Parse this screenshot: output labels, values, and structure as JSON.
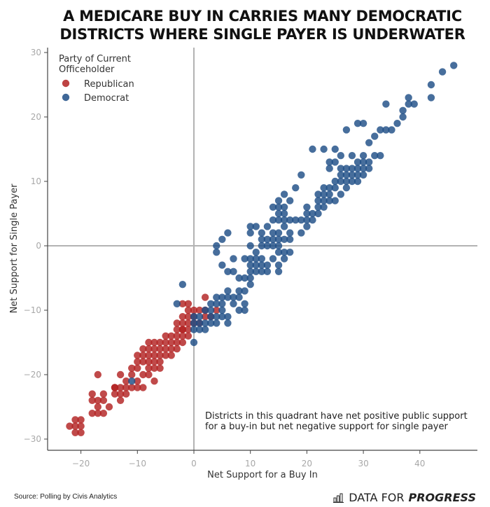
{
  "title_lines": [
    "A MEDICARE BUY IN CARRIES MANY DEMOCRATIC",
    "DISTRICTS WHERE SINGLE PAYER IS UNDERWATER"
  ],
  "source": "Source: Polling by Civis Analytics",
  "brand": {
    "icon": "bar-chart-icon",
    "light": "DATA FOR",
    "strong": "PROGRESS"
  },
  "chart_data": {
    "type": "scatter",
    "title": "A MEDICARE BUY IN CARRIES MANY DEMOCRATIC DISTRICTS WHERE SINGLE PAYER IS UNDERWATER",
    "xlabel": "Net Support for a Buy In",
    "ylabel": "Net Support for Single Payer",
    "xlim": [
      -25.5,
      50
    ],
    "ylim": [
      -32,
      31
    ],
    "xticks": [
      -20,
      -10,
      0,
      10,
      20,
      30,
      40
    ],
    "yticks": [
      -30,
      -20,
      -10,
      0,
      10,
      20,
      30
    ],
    "xtick_labels": [
      "−20",
      "−10",
      "0",
      "10",
      "20",
      "30",
      "40"
    ],
    "ytick_labels": [
      "−30",
      "−20",
      "−10",
      "0",
      "10",
      "20",
      "30"
    ],
    "reference_lines": {
      "x": 0,
      "y": 0
    },
    "grid": false,
    "legend": {
      "title_lines": [
        "Party of Current",
        "Officeholder"
      ],
      "placement": "top-left"
    },
    "annotation": [
      "Districts in this quadrant have net positive public support",
      "for a buy-in but net negative support for single payer"
    ],
    "series": [
      {
        "name": "Republican",
        "color": "#b22222",
        "points": [
          [
            -22,
            -28
          ],
          [
            -21,
            -28
          ],
          [
            -21,
            -27
          ],
          [
            -20,
            -27
          ],
          [
            -21,
            -29
          ],
          [
            -20,
            -28
          ],
          [
            -20,
            -29
          ],
          [
            -18,
            -26
          ],
          [
            -17,
            -26
          ],
          [
            -16,
            -26
          ],
          [
            -18,
            -23
          ],
          [
            -16,
            -23
          ],
          [
            -18,
            -24
          ],
          [
            -17,
            -24
          ],
          [
            -16,
            -24
          ],
          [
            -17,
            -25
          ],
          [
            -15,
            -25
          ],
          [
            -17,
            -20
          ],
          [
            -13,
            -20
          ],
          [
            -14,
            -23
          ],
          [
            -13,
            -23
          ],
          [
            -12,
            -23
          ],
          [
            -14,
            -22
          ],
          [
            -13,
            -22
          ],
          [
            -12,
            -22
          ],
          [
            -13,
            -24
          ],
          [
            -14,
            -22
          ],
          [
            -12,
            -21
          ],
          [
            -11,
            -22
          ],
          [
            -10,
            -22
          ],
          [
            -9,
            -22
          ],
          [
            -11,
            -19
          ],
          [
            -10,
            -19
          ],
          [
            -11,
            -20
          ],
          [
            -9,
            -20
          ],
          [
            -8,
            -20
          ],
          [
            -10,
            -21
          ],
          [
            -7,
            -21
          ],
          [
            -9,
            -18
          ],
          [
            -8,
            -18
          ],
          [
            -7,
            -18
          ],
          [
            -6,
            -18
          ],
          [
            -9,
            -17
          ],
          [
            -8,
            -17
          ],
          [
            -7,
            -17
          ],
          [
            -6,
            -17
          ],
          [
            -5,
            -17
          ],
          [
            -9,
            -16
          ],
          [
            -7,
            -16
          ],
          [
            -6,
            -16
          ],
          [
            -5,
            -16
          ],
          [
            -4,
            -16
          ],
          [
            -8,
            -15
          ],
          [
            -7,
            -15
          ],
          [
            -6,
            -15
          ],
          [
            -5,
            -15
          ],
          [
            -4,
            -15
          ],
          [
            -3,
            -15
          ],
          [
            -2,
            -15
          ],
          [
            -8,
            -19
          ],
          [
            -7,
            -19
          ],
          [
            -6,
            -19
          ],
          [
            -8,
            -16
          ],
          [
            -10,
            -17
          ],
          [
            -10,
            -18
          ],
          [
            -5,
            -14
          ],
          [
            -4,
            -14
          ],
          [
            -3,
            -14
          ],
          [
            -2,
            -14
          ],
          [
            -1,
            -14
          ],
          [
            -3,
            -13
          ],
          [
            -2,
            -13
          ],
          [
            -4,
            -17
          ],
          [
            -3,
            -16
          ],
          [
            -2,
            -13
          ],
          [
            -1,
            -13
          ],
          [
            -3,
            -12
          ],
          [
            -2,
            -12
          ],
          [
            -1,
            -12
          ],
          [
            0,
            -12
          ],
          [
            1,
            -12
          ],
          [
            -2,
            -11
          ],
          [
            -1,
            -11
          ],
          [
            2,
            -11
          ],
          [
            -1,
            -10
          ],
          [
            0,
            -10
          ],
          [
            1,
            -10
          ],
          [
            2,
            -10
          ],
          [
            0,
            -11
          ],
          [
            -1,
            -9
          ],
          [
            -2,
            -9
          ],
          [
            2,
            -8
          ],
          [
            4,
            -10
          ],
          [
            3,
            -11
          ]
        ]
      },
      {
        "name": "Democrat",
        "color": "#1f4e86",
        "points": [
          [
            -11,
            -21
          ],
          [
            -2,
            -6
          ],
          [
            -3,
            -9
          ],
          [
            0,
            -15
          ],
          [
            0,
            -13
          ],
          [
            0,
            -12
          ],
          [
            1,
            -12
          ],
          [
            1,
            -13
          ],
          [
            1,
            -11
          ],
          [
            0,
            -11
          ],
          [
            2,
            -12
          ],
          [
            2,
            -13
          ],
          [
            3,
            -12
          ],
          [
            3,
            -11
          ],
          [
            3,
            -10
          ],
          [
            4,
            -11
          ],
          [
            4,
            -9
          ],
          [
            5,
            -9
          ],
          [
            5,
            -10
          ],
          [
            6,
            -11
          ],
          [
            6,
            -12
          ],
          [
            5,
            -11
          ],
          [
            4,
            -12
          ],
          [
            2,
            -10
          ],
          [
            3,
            -9
          ],
          [
            6,
            -8
          ],
          [
            7,
            -8
          ],
          [
            5,
            -8
          ],
          [
            6,
            -7
          ],
          [
            4,
            -8
          ],
          [
            7,
            -9
          ],
          [
            8,
            -8
          ],
          [
            8,
            -10
          ],
          [
            9,
            -10
          ],
          [
            9,
            -9
          ],
          [
            8,
            -7
          ],
          [
            9,
            -7
          ],
          [
            10,
            -6
          ],
          [
            9,
            -5
          ],
          [
            8,
            -5
          ],
          [
            7,
            -4
          ],
          [
            6,
            -4
          ],
          [
            5,
            -3
          ],
          [
            7,
            -2
          ],
          [
            9,
            -2
          ],
          [
            10,
            -2
          ],
          [
            11,
            -2
          ],
          [
            12,
            -2
          ],
          [
            10,
            -3
          ],
          [
            11,
            -3
          ],
          [
            12,
            -3
          ],
          [
            13,
            -3
          ],
          [
            12,
            -4
          ],
          [
            11,
            -4
          ],
          [
            10,
            -4
          ],
          [
            10,
            -5
          ],
          [
            13,
            -4
          ],
          [
            14,
            -2
          ],
          [
            15,
            -1
          ],
          [
            16,
            -1
          ],
          [
            17,
            -1
          ],
          [
            15,
            -3
          ],
          [
            15,
            -4
          ],
          [
            11,
            -1
          ],
          [
            12,
            0
          ],
          [
            13,
            0
          ],
          [
            14,
            0
          ],
          [
            15,
            0
          ],
          [
            13,
            1
          ],
          [
            14,
            1
          ],
          [
            15,
            1
          ],
          [
            16,
            1
          ],
          [
            17,
            1
          ],
          [
            12,
            1
          ],
          [
            16,
            -2
          ],
          [
            4,
            -1
          ],
          [
            4,
            0
          ],
          [
            6,
            2
          ],
          [
            5,
            1
          ],
          [
            10,
            0
          ],
          [
            10,
            2
          ],
          [
            10,
            3
          ],
          [
            11,
            3
          ],
          [
            12,
            2
          ],
          [
            13,
            3
          ],
          [
            14,
            2
          ],
          [
            15,
            2
          ],
          [
            16,
            3
          ],
          [
            17,
            2
          ],
          [
            18,
            4
          ],
          [
            19,
            4
          ],
          [
            19,
            2
          ],
          [
            20,
            3
          ],
          [
            14,
            4
          ],
          [
            15,
            4
          ],
          [
            16,
            4
          ],
          [
            17,
            4
          ],
          [
            15,
            5
          ],
          [
            16,
            5
          ],
          [
            16,
            6
          ],
          [
            14,
            6
          ],
          [
            15,
            6
          ],
          [
            15,
            7
          ],
          [
            16,
            8
          ],
          [
            17,
            7
          ],
          [
            18,
            9
          ],
          [
            19,
            11
          ],
          [
            20,
            4
          ],
          [
            21,
            4
          ],
          [
            20,
            5
          ],
          [
            21,
            5
          ],
          [
            22,
            5
          ],
          [
            20,
            6
          ],
          [
            22,
            6
          ],
          [
            23,
            6
          ],
          [
            22,
            7
          ],
          [
            23,
            7
          ],
          [
            23,
            8
          ],
          [
            24,
            8
          ],
          [
            24,
            9
          ],
          [
            25,
            9
          ],
          [
            25,
            10
          ],
          [
            26,
            10
          ],
          [
            22,
            8
          ],
          [
            23,
            9
          ],
          [
            24,
            7
          ],
          [
            25,
            7
          ],
          [
            26,
            8
          ],
          [
            27,
            10
          ],
          [
            28,
            10
          ],
          [
            29,
            10
          ],
          [
            26,
            11
          ],
          [
            27,
            11
          ],
          [
            28,
            11
          ],
          [
            29,
            11
          ],
          [
            30,
            11
          ],
          [
            26,
            12
          ],
          [
            27,
            12
          ],
          [
            28,
            12
          ],
          [
            29,
            12
          ],
          [
            30,
            12
          ],
          [
            31,
            12
          ],
          [
            27,
            9
          ],
          [
            29,
            13
          ],
          [
            30,
            13
          ],
          [
            31,
            13
          ],
          [
            32,
            14
          ],
          [
            33,
            14
          ],
          [
            30,
            14
          ],
          [
            28,
            14
          ],
          [
            26,
            14
          ],
          [
            24,
            12
          ],
          [
            24,
            13
          ],
          [
            25,
            13
          ],
          [
            25,
            15
          ],
          [
            23,
            15
          ],
          [
            21,
            15
          ],
          [
            31,
            16
          ],
          [
            32,
            17
          ],
          [
            33,
            18
          ],
          [
            34,
            18
          ],
          [
            35,
            18
          ],
          [
            36,
            19
          ],
          [
            37,
            20
          ],
          [
            37,
            21
          ],
          [
            38,
            22
          ],
          [
            38,
            23
          ],
          [
            39,
            22
          ],
          [
            34,
            22
          ],
          [
            29,
            19
          ],
          [
            30,
            19
          ],
          [
            27,
            18
          ],
          [
            42,
            23
          ],
          [
            42,
            25
          ],
          [
            44,
            27
          ],
          [
            46,
            28
          ]
        ]
      }
    ]
  }
}
